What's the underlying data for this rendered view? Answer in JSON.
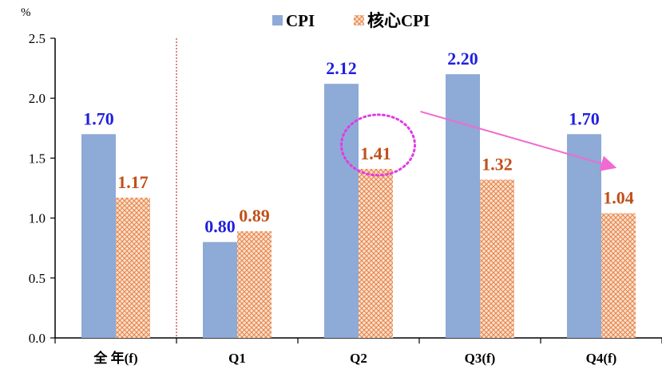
{
  "chart_data": {
    "type": "bar",
    "ylabel": "%",
    "ylim": [
      0,
      2.5
    ],
    "yticks": [
      "0.0",
      "0.5",
      "1.0",
      "1.5",
      "2.0",
      "2.5"
    ],
    "categories": [
      "全 年(f)",
      "Q1",
      "Q2",
      "Q3(f)",
      "Q4(f)"
    ],
    "series": [
      {
        "name": "CPI",
        "values": [
          1.7,
          0.8,
          2.12,
          2.2,
          1.7
        ],
        "labels": [
          "1.70",
          "0.80",
          "2.12",
          "2.20",
          "1.70"
        ],
        "color": "#8eaad6"
      },
      {
        "name": "核心CPI",
        "values": [
          1.17,
          0.89,
          1.41,
          1.32,
          1.04
        ],
        "labels": [
          "1.17",
          "0.89",
          "1.41",
          "1.32",
          "1.04"
        ],
        "color": "#f0a878"
      }
    ],
    "legend": "top-center",
    "grid": false,
    "annotations": {
      "divider_after_category": 0,
      "highlight_circle": "Q2 核心CPI 1.41",
      "trend_arrow": "from Q2 核心CPI to Q4(f) 核心CPI"
    }
  },
  "colors": {
    "cpi_bar": "#8eaad6",
    "core_fill": "#f7d8c2",
    "core_pattern": "#e8854a",
    "cpi_label": "#1f1fe0",
    "core_label": "#c0501a",
    "divider": "#c0392b",
    "highlight": "#e23be6",
    "arrow": "#f06ad2"
  }
}
